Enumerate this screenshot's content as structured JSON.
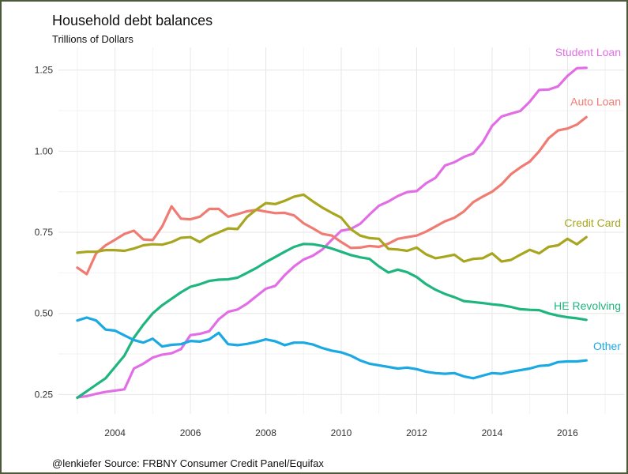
{
  "chart_data": {
    "type": "line",
    "title": "Household debt balances",
    "subtitle": "Trillions of Dollars",
    "caption": "@lenkiefer Source: FRBNY Consumer Credit Panel/Equifax",
    "xlabel": "",
    "ylabel": "",
    "xlim": [
      2002.5,
      2017.5
    ],
    "ylim": [
      0.19,
      1.32
    ],
    "x_ticks": [
      2004,
      2006,
      2008,
      2010,
      2012,
      2014,
      2016
    ],
    "y_ticks": [
      0.25,
      0.5,
      0.75,
      1.0,
      1.25
    ],
    "y_tick_labels": [
      "0.25",
      "0.50",
      "0.75",
      "1.00",
      "1.25"
    ],
    "grid": true,
    "legend": "direct labels at line ends",
    "x": [
      2003.0,
      2003.25,
      2003.5,
      2003.75,
      2004.0,
      2004.25,
      2004.5,
      2004.75,
      2005.0,
      2005.25,
      2005.5,
      2005.75,
      2006.0,
      2006.25,
      2006.5,
      2006.75,
      2007.0,
      2007.25,
      2007.5,
      2007.75,
      2008.0,
      2008.25,
      2008.5,
      2008.75,
      2009.0,
      2009.25,
      2009.5,
      2009.75,
      2010.0,
      2010.25,
      2010.5,
      2010.75,
      2011.0,
      2011.25,
      2011.5,
      2011.75,
      2012.0,
      2012.25,
      2012.5,
      2012.75,
      2013.0,
      2013.25,
      2013.5,
      2013.75,
      2014.0,
      2014.25,
      2014.5,
      2014.75,
      2015.0,
      2015.25,
      2015.5,
      2015.75,
      2016.0,
      2016.25,
      2016.5
    ],
    "series": [
      {
        "name": "Student Loan",
        "color": "#e26ee6",
        "values": [
          0.241,
          0.245,
          0.252,
          0.258,
          0.262,
          0.266,
          0.33,
          0.345,
          0.364,
          0.373,
          0.377,
          0.39,
          0.433,
          0.437,
          0.445,
          0.482,
          0.505,
          0.512,
          0.53,
          0.553,
          0.576,
          0.585,
          0.618,
          0.645,
          0.666,
          0.678,
          0.697,
          0.727,
          0.755,
          0.76,
          0.776,
          0.805,
          0.832,
          0.845,
          0.862,
          0.874,
          0.877,
          0.901,
          0.918,
          0.956,
          0.966,
          0.982,
          0.993,
          1.027,
          1.078,
          1.107,
          1.116,
          1.124,
          1.153,
          1.189,
          1.19,
          1.2,
          1.232,
          1.256,
          1.257
        ]
      },
      {
        "name": "Auto Loan",
        "color": "#ef7b73",
        "values": [
          0.641,
          0.621,
          0.685,
          0.71,
          0.727,
          0.745,
          0.755,
          0.728,
          0.726,
          0.768,
          0.83,
          0.792,
          0.79,
          0.798,
          0.822,
          0.822,
          0.798,
          0.806,
          0.815,
          0.819,
          0.814,
          0.809,
          0.81,
          0.802,
          0.778,
          0.762,
          0.745,
          0.74,
          0.72,
          0.702,
          0.703,
          0.708,
          0.705,
          0.715,
          0.73,
          0.735,
          0.74,
          0.752,
          0.768,
          0.784,
          0.795,
          0.814,
          0.843,
          0.86,
          0.875,
          0.898,
          0.929,
          0.95,
          0.968,
          1.0,
          1.04,
          1.064,
          1.07,
          1.082,
          1.105
        ]
      },
      {
        "name": "Credit Card",
        "color": "#a8a51f",
        "values": [
          0.687,
          0.69,
          0.69,
          0.695,
          0.695,
          0.693,
          0.7,
          0.71,
          0.713,
          0.712,
          0.72,
          0.733,
          0.735,
          0.72,
          0.738,
          0.75,
          0.762,
          0.76,
          0.797,
          0.82,
          0.84,
          0.837,
          0.847,
          0.86,
          0.866,
          0.845,
          0.826,
          0.81,
          0.795,
          0.76,
          0.74,
          0.732,
          0.73,
          0.699,
          0.697,
          0.693,
          0.703,
          0.682,
          0.67,
          0.675,
          0.681,
          0.66,
          0.668,
          0.67,
          0.685,
          0.66,
          0.665,
          0.681,
          0.696,
          0.685,
          0.705,
          0.71,
          0.73,
          0.713,
          0.735
        ]
      },
      {
        "name": "HE Revolving",
        "color": "#1fb57e",
        "values": [
          0.24,
          0.26,
          0.28,
          0.3,
          0.335,
          0.37,
          0.425,
          0.465,
          0.5,
          0.525,
          0.545,
          0.565,
          0.582,
          0.59,
          0.6,
          0.604,
          0.605,
          0.61,
          0.625,
          0.64,
          0.658,
          0.674,
          0.69,
          0.705,
          0.714,
          0.713,
          0.708,
          0.7,
          0.69,
          0.68,
          0.673,
          0.668,
          0.645,
          0.626,
          0.635,
          0.627,
          0.612,
          0.59,
          0.573,
          0.56,
          0.55,
          0.538,
          0.535,
          0.532,
          0.528,
          0.525,
          0.52,
          0.513,
          0.511,
          0.51,
          0.5,
          0.493,
          0.488,
          0.485,
          0.48
        ]
      },
      {
        "name": "Other",
        "color": "#1aa9e2",
        "values": [
          0.478,
          0.487,
          0.478,
          0.45,
          0.447,
          0.432,
          0.418,
          0.41,
          0.422,
          0.398,
          0.403,
          0.405,
          0.415,
          0.413,
          0.42,
          0.44,
          0.405,
          0.402,
          0.406,
          0.412,
          0.42,
          0.414,
          0.402,
          0.41,
          0.41,
          0.404,
          0.393,
          0.385,
          0.38,
          0.37,
          0.355,
          0.345,
          0.34,
          0.335,
          0.33,
          0.333,
          0.328,
          0.32,
          0.316,
          0.314,
          0.316,
          0.306,
          0.3,
          0.308,
          0.316,
          0.314,
          0.32,
          0.325,
          0.33,
          0.338,
          0.34,
          0.35,
          0.352,
          0.352,
          0.355
        ]
      }
    ]
  }
}
